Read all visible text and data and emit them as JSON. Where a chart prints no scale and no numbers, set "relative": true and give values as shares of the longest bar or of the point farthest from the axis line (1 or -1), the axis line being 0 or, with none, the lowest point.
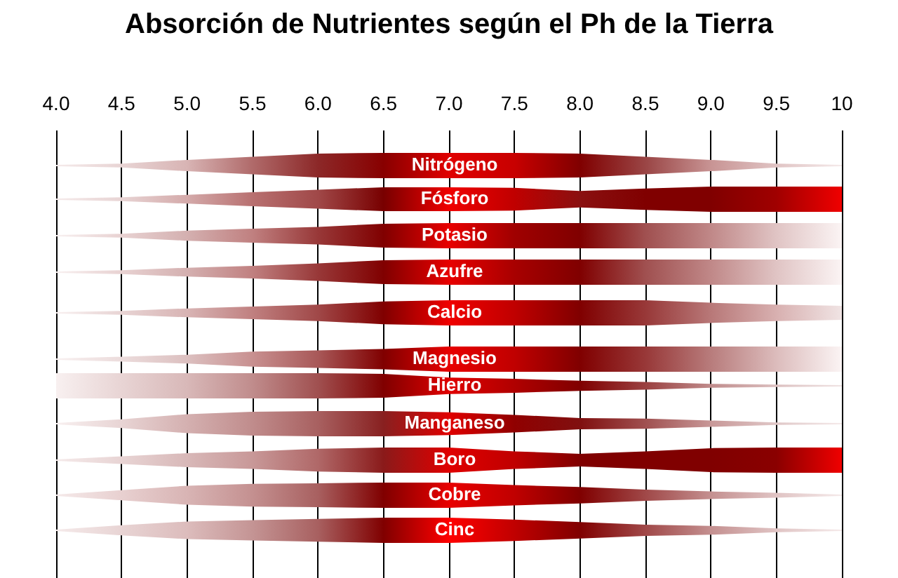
{
  "chart_data": [
    {
      "type": "area",
      "title": "Absorción de Nutrientes según el Ph de la Tierra",
      "relative": true,
      "grid": "x",
      "tick_labels": "x",
      "x": [
        4,
        4.5,
        5,
        5.5,
        6,
        6.5,
        7,
        7.5,
        8,
        8.5,
        9,
        9.5,
        10
      ],
      "xlim": [
        4,
        10
      ],
      "xticks": [
        {
          "value": 4,
          "label": "4.0"
        },
        4.5,
        {
          "value": 5,
          "label": "5.0"
        },
        5.5,
        {
          "value": 6,
          "label": "6.0"
        },
        6.5,
        {
          "value": 7,
          "label": "7.0"
        },
        7.5,
        {
          "value": 8,
          "label": "8.0"
        },
        8.5,
        {
          "value": 9,
          "label": "9.0"
        },
        9.5,
        10
      ],
      "series": [
        {
          "name": "Nitrógeno",
          "values": [
            0.05,
            0.15,
            0.45,
            0.7,
            0.95,
            1,
            1,
            1,
            0.95,
            0.7,
            0.45,
            0.15,
            0.05
          ],
          "colors": [
            "#f5eaea",
            "#e8d4d4",
            "#d8b4b4",
            "#b06a6a",
            "#8c2828",
            "#880000",
            "#e00000",
            "#c80000",
            "#800000",
            "#9a4545",
            "#c89494",
            "#e0c4c4",
            "#f5eaea"
          ]
        }
      ]
    },
    {
      "type": "area",
      "relative": true,
      "grid": "x",
      "tick_labels": false,
      "x": [
        4,
        4.5,
        5,
        5.5,
        6,
        6.5,
        7,
        7.5,
        8,
        8.5,
        9,
        9.5,
        10
      ],
      "xlim": [
        4,
        10
      ],
      "xticks": [
        4,
        4.5,
        5,
        5.5,
        6,
        6.5,
        7,
        7.5,
        8,
        8.5,
        9,
        9.5,
        10
      ],
      "series": [
        {
          "name": "Fósforo",
          "values": [
            0.05,
            0.15,
            0.35,
            0.55,
            0.75,
            0.95,
            0.95,
            0.9,
            0.65,
            0.85,
            1,
            1,
            1
          ],
          "colors": [
            "#f5eaea",
            "#e8d4d4",
            "#d4aaaa",
            "#b87070",
            "#a04848",
            "#780000",
            "#f00000",
            "#c00000",
            "#8a1010",
            "#800000",
            "#800000",
            "#a00000",
            "#f00000"
          ]
        }
      ]
    },
    {
      "type": "area",
      "relative": true,
      "grid": "x",
      "tick_labels": false,
      "x": [
        4,
        4.5,
        5,
        5.5,
        6,
        6.5,
        7,
        7.5,
        8,
        8.5,
        9,
        9.5,
        10
      ],
      "xlim": [
        4,
        10
      ],
      "xticks": [
        4,
        4.5,
        5,
        5.5,
        6,
        6.5,
        7,
        7.5,
        8,
        8.5,
        9,
        9.5,
        10
      ],
      "series": [
        {
          "name": "Potasio",
          "values": [
            0.05,
            0.15,
            0.4,
            0.55,
            0.7,
            0.95,
            1,
            1,
            1,
            1,
            1,
            1,
            1
          ],
          "colors": [
            "#f8f0f0",
            "#e8d2d2",
            "#d4b0b0",
            "#c08080",
            "#983838",
            "#800000",
            "#e80000",
            "#a00000",
            "#800000",
            "#a05050",
            "#c08888",
            "#e0c4c4",
            "#fbf4f4"
          ]
        }
      ]
    },
    {
      "type": "area",
      "relative": true,
      "grid": "x",
      "tick_labels": false,
      "x": [
        4,
        4.5,
        5,
        5.5,
        6,
        6.5,
        7,
        7.5,
        8,
        8.5,
        9,
        9.5,
        10
      ],
      "xlim": [
        4,
        10
      ],
      "xticks": [
        4,
        4.5,
        5,
        5.5,
        6,
        6.5,
        7,
        7.5,
        8,
        8.5,
        9,
        9.5,
        10
      ],
      "series": [
        {
          "name": "Azufre",
          "values": [
            0.05,
            0.15,
            0.35,
            0.5,
            0.7,
            0.95,
            1,
            1,
            1,
            1,
            1,
            1,
            1
          ],
          "colors": [
            "#f8f0f0",
            "#e8d2d2",
            "#d4b0b0",
            "#c08080",
            "#983838",
            "#800000",
            "#e80000",
            "#a80000",
            "#800000",
            "#a05050",
            "#c08888",
            "#e0c4c4",
            "#fbf4f4"
          ]
        }
      ]
    },
    {
      "type": "area",
      "relative": true,
      "grid": "x",
      "tick_labels": false,
      "x": [
        4,
        4.5,
        5,
        5.5,
        6,
        6.5,
        7,
        7.5,
        8,
        8.5,
        9,
        9.5,
        10
      ],
      "xlim": [
        4,
        10
      ],
      "xticks": [
        4,
        4.5,
        5,
        5.5,
        6,
        6.5,
        7,
        7.5,
        8,
        8.5,
        9,
        9.5,
        10
      ],
      "series": [
        {
          "name": "Calcio",
          "values": [
            0.05,
            0.15,
            0.35,
            0.5,
            0.65,
            0.9,
            1,
            1,
            1,
            1,
            0.8,
            0.65,
            0.55
          ],
          "colors": [
            "#f8f0f0",
            "#e8d4d4",
            "#d8b4b4",
            "#c08080",
            "#a04848",
            "#800000",
            "#f00000",
            "#c00000",
            "#800000",
            "#983838",
            "#b87878",
            "#d8b0b0",
            "#f0e4e4"
          ]
        }
      ]
    },
    {
      "type": "area",
      "relative": true,
      "grid": "x",
      "tick_labels": false,
      "x": [
        4,
        4.5,
        5,
        5.5,
        6,
        6.5,
        7,
        7.5,
        8,
        8.5,
        9,
        9.5,
        10
      ],
      "xlim": [
        4,
        10
      ],
      "xticks": [
        4,
        4.5,
        5,
        5.5,
        6,
        6.5,
        7,
        7.5,
        8,
        8.5,
        9,
        9.5,
        10
      ],
      "series": [
        {
          "name": "Magnesio",
          "values": [
            0.05,
            0.2,
            0.35,
            0.6,
            0.7,
            0.8,
            1,
            1,
            1,
            1,
            1,
            1,
            1
          ],
          "colors": [
            "#f8f0f0",
            "#ecdcdc",
            "#dcc0c0",
            "#c89090",
            "#a85858",
            "#800000",
            "#e80000",
            "#c00000",
            "#800000",
            "#983838",
            "#b87c7c",
            "#dcbcbc",
            "#fbf4f4"
          ]
        }
      ]
    },
    {
      "type": "area",
      "relative": true,
      "grid": "x",
      "tick_labels": false,
      "x": [
        4,
        4.5,
        5,
        5.5,
        6,
        6.5,
        7,
        7.5,
        8,
        8.5,
        9,
        9.5,
        10
      ],
      "xlim": [
        4,
        10
      ],
      "xticks": [
        4,
        4.5,
        5,
        5.5,
        6,
        6.5,
        7,
        7.5,
        8,
        8.5,
        9,
        9.5,
        10
      ],
      "series": [
        {
          "name": "Hierro",
          "values": [
            1,
            1,
            1,
            1,
            1,
            0.95,
            0.65,
            0.55,
            0.4,
            0.3,
            0.15,
            0.1,
            0.05
          ],
          "colors": [
            "#f8f0f0",
            "#e8d4d4",
            "#d8b8b8",
            "#c08c8c",
            "#a05050",
            "#800000",
            "#e00000",
            "#b00000",
            "#800000",
            "#9a4040",
            "#c08c8c",
            "#dcc0c0",
            "#f0e4e4"
          ]
        }
      ]
    },
    {
      "type": "area",
      "relative": true,
      "grid": "x",
      "tick_labels": false,
      "x": [
        4,
        4.5,
        5,
        5.5,
        6,
        6.5,
        7,
        7.5,
        8,
        8.5,
        9,
        9.5,
        10
      ],
      "xlim": [
        4,
        10
      ],
      "xticks": [
        4,
        4.5,
        5,
        5.5,
        6,
        6.5,
        7,
        7.5,
        8,
        8.5,
        9,
        9.5,
        10
      ],
      "series": [
        {
          "name": "Manganeso",
          "values": [
            0.05,
            0.35,
            0.75,
            0.95,
            1,
            1,
            0.9,
            0.7,
            0.45,
            0.4,
            0.25,
            0.1,
            0.05
          ],
          "colors": [
            "#f8f0f0",
            "#e8d4d4",
            "#d4b0b0",
            "#c08c8c",
            "#a86060",
            "#882020",
            "#e00000",
            "#900000",
            "#801010",
            "#a05050",
            "#c89898",
            "#e0c8c8",
            "#f5eaea"
          ]
        }
      ]
    },
    {
      "type": "area",
      "relative": true,
      "grid": "x",
      "tick_labels": false,
      "x": [
        4,
        4.5,
        5,
        5.5,
        6,
        6.5,
        7,
        7.5,
        8,
        8.5,
        9,
        9.5,
        10
      ],
      "xlim": [
        4,
        10
      ],
      "xticks": [
        4,
        4.5,
        5,
        5.5,
        6,
        6.5,
        7,
        7.5,
        8,
        8.5,
        9,
        9.5,
        10
      ],
      "series": [
        {
          "name": "Boro",
          "values": [
            0.05,
            0.3,
            0.55,
            0.7,
            0.9,
            1,
            1,
            0.7,
            0.5,
            0.7,
            0.95,
            1,
            1
          ],
          "colors": [
            "#f5eaea",
            "#e8d4d4",
            "#d8b8b8",
            "#c89898",
            "#b06868",
            "#8a1a1a",
            "#e00000",
            "#c00000",
            "#800000",
            "#800000",
            "#800000",
            "#8a0000",
            "#f00000"
          ]
        }
      ]
    },
    {
      "type": "area",
      "relative": true,
      "grid": "x",
      "tick_labels": false,
      "x": [
        4,
        4.5,
        5,
        5.5,
        6,
        6.5,
        7,
        7.5,
        8,
        8.5,
        9,
        9.5,
        10
      ],
      "xlim": [
        4,
        10
      ],
      "xticks": [
        4,
        4.5,
        5,
        5.5,
        6,
        6.5,
        7,
        7.5,
        8,
        8.5,
        9,
        9.5,
        10
      ],
      "series": [
        {
          "name": "Cobre",
          "values": [
            0.05,
            0.4,
            0.75,
            0.9,
            0.95,
            1,
            1,
            0.8,
            0.65,
            0.45,
            0.3,
            0.2,
            0.05
          ],
          "colors": [
            "#f5eaea",
            "#e8d0d0",
            "#d8b4b4",
            "#c49090",
            "#a86060",
            "#800000",
            "#e80000",
            "#c00000",
            "#800000",
            "#a04848",
            "#c49090",
            "#e0c4c4",
            "#f5eaea"
          ]
        }
      ]
    },
    {
      "type": "area",
      "relative": true,
      "grid": "x",
      "tick_labels": false,
      "x": [
        4,
        4.5,
        5,
        5.5,
        6,
        6.5,
        7,
        7.5,
        8,
        8.5,
        9,
        9.5,
        10
      ],
      "xlim": [
        4,
        10
      ],
      "xticks": [
        4,
        4.5,
        5,
        5.5,
        6,
        6.5,
        7,
        7.5,
        8,
        8.5,
        9,
        9.5,
        10
      ],
      "series": [
        {
          "name": "Cinc",
          "values": [
            0.05,
            0.4,
            0.7,
            0.8,
            0.9,
            1,
            1,
            0.85,
            0.65,
            0.45,
            0.35,
            0.15,
            0.05
          ],
          "colors": [
            "#f5eaea",
            "#e8d4d4",
            "#dcbcbc",
            "#c49494",
            "#a86060",
            "#800000",
            "#ff0000",
            "#c00000",
            "#800000",
            "#a04848",
            "#c49090",
            "#e0c4c4",
            "#f5eaea"
          ]
        }
      ]
    }
  ]
}
